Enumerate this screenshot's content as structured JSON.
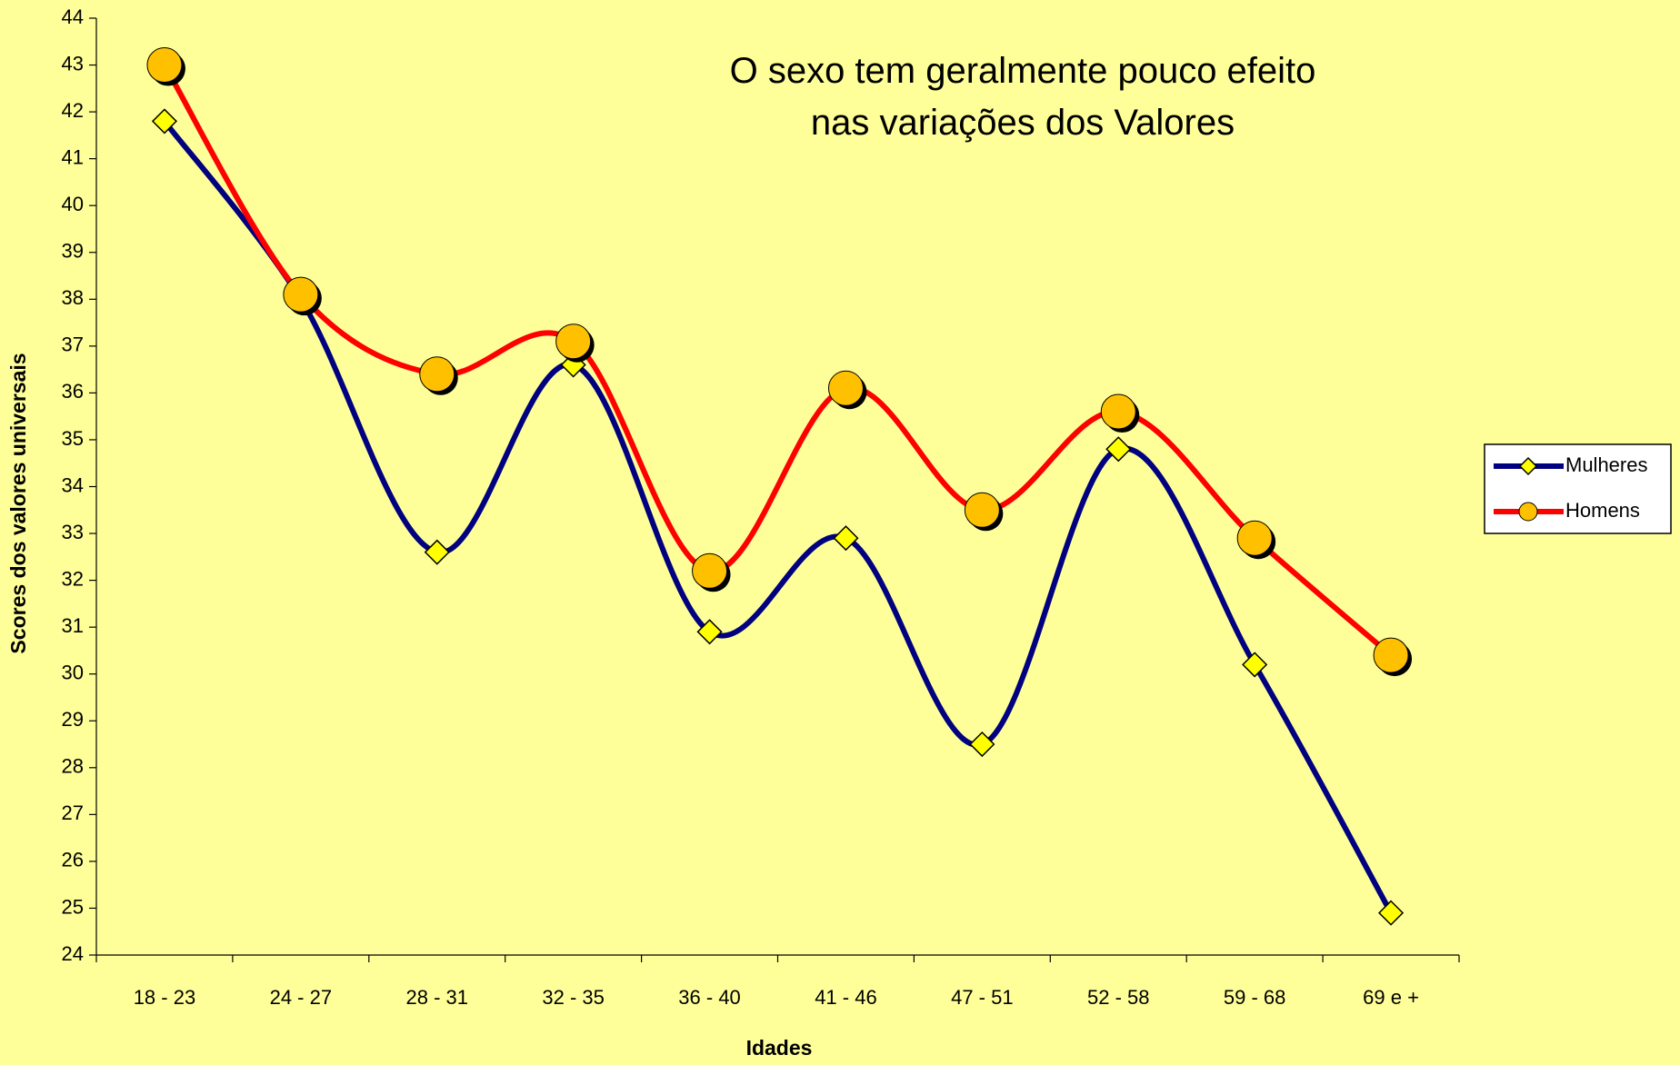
{
  "chart_data": {
    "type": "line",
    "title": "O sexo tem geralmente pouco efeito nas variações dos Valores",
    "x_label": "Idades",
    "y_label": "Scores dos  valores universais",
    "categories": [
      "18 - 23",
      "24 - 27",
      "28 - 31",
      "32 - 35",
      "36 - 40",
      "41 - 46",
      "47 - 51",
      "52 - 58",
      "59 - 68",
      "69 e +"
    ],
    "series": [
      {
        "name": "Mulheres",
        "color": "#000080",
        "marker": "diamond",
        "marker_color": "#ffff00",
        "values": [
          41.8,
          38.0,
          32.6,
          36.6,
          30.9,
          32.9,
          28.5,
          34.8,
          30.2,
          24.9
        ]
      },
      {
        "name": "Homens",
        "color": "#ff0000",
        "marker": "circle",
        "marker_color": "#ffc000",
        "values": [
          43.0,
          38.1,
          36.4,
          37.1,
          32.2,
          36.1,
          33.5,
          35.6,
          32.9,
          30.4
        ]
      }
    ],
    "ylim": [
      24,
      44
    ],
    "yticks": [
      24,
      25,
      26,
      27,
      28,
      29,
      30,
      31,
      32,
      33,
      34,
      35,
      36,
      37,
      38,
      39,
      40,
      41,
      42,
      43,
      44
    ],
    "smooth": true,
    "legend": "right"
  }
}
